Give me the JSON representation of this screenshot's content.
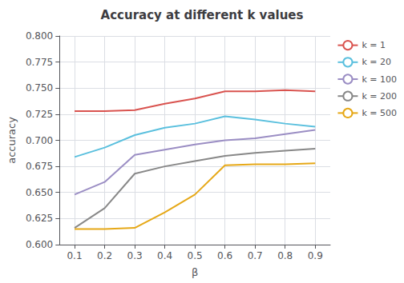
{
  "chart_data": {
    "type": "line",
    "title": "Accuracy at different k values",
    "xlabel": "β",
    "ylabel": "accuracy",
    "x": [
      0.1,
      0.2,
      0.3,
      0.4,
      0.5,
      0.6,
      0.7,
      0.8,
      0.9
    ],
    "series": [
      {
        "name": "k = 1",
        "color": "#d9534f",
        "values": [
          0.728,
          0.728,
          0.729,
          0.735,
          0.74,
          0.747,
          0.747,
          0.748,
          0.747
        ]
      },
      {
        "name": "k = 20",
        "color": "#5bc0de",
        "values": [
          0.684,
          0.693,
          0.705,
          0.712,
          0.716,
          0.723,
          0.72,
          0.716,
          0.713
        ]
      },
      {
        "name": "k = 100",
        "color": "#9b8ec4",
        "values": [
          0.648,
          0.66,
          0.686,
          0.691,
          0.696,
          0.7,
          0.702,
          0.706,
          0.71
        ]
      },
      {
        "name": "k = 200",
        "color": "#888888",
        "values": [
          0.616,
          0.635,
          0.668,
          0.675,
          0.68,
          0.685,
          0.688,
          0.69,
          0.692
        ]
      },
      {
        "name": "k = 500",
        "color": "#e6a817",
        "values": [
          0.615,
          0.615,
          0.616,
          0.631,
          0.648,
          0.676,
          0.677,
          0.677,
          0.678
        ]
      }
    ],
    "xlim": [
      0.05,
      0.95
    ],
    "xticks": [
      0.1,
      0.2,
      0.3,
      0.4,
      0.5,
      0.6,
      0.7,
      0.8,
      0.9
    ],
    "ylim": [
      0.6,
      0.8
    ],
    "yticks": [
      {
        "value": 0.6,
        "label": "0.600"
      },
      0.625,
      {
        "value": 0.65,
        "label": "0.650"
      },
      0.675,
      {
        "value": 0.7,
        "label": "0.700"
      },
      0.725,
      {
        "value": 0.75,
        "label": "0.750"
      },
      0.775,
      {
        "value": 0.8,
        "label": "0.800"
      }
    ],
    "grid": true,
    "legend": "upper right"
  }
}
